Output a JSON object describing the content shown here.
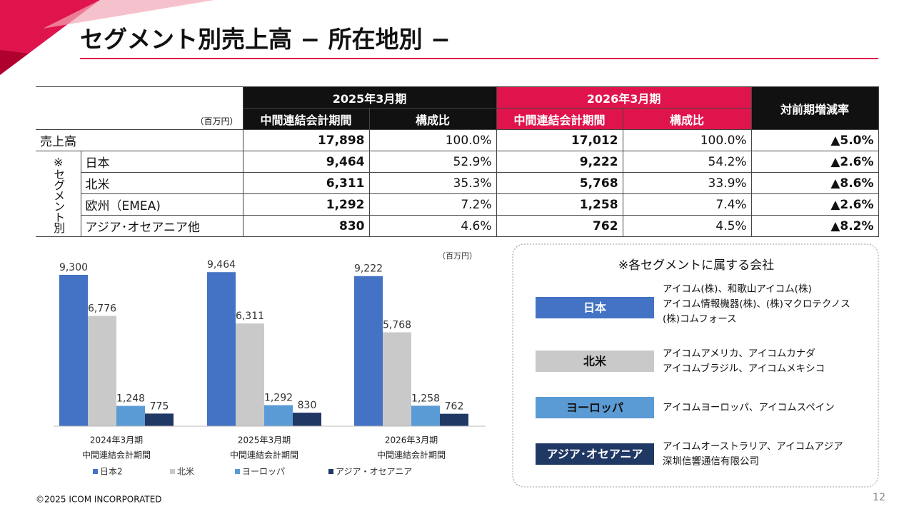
{
  "header": {
    "title": "セグメント別売上高 − 所在地別 −"
  },
  "table": {
    "unit": "（百万円）",
    "periods": [
      "2025年3月期",
      "2026年3月期"
    ],
    "change_header": "対前期増減率",
    "subheaders": [
      "中間連結会計期間",
      "構成比",
      "中間連結会計期間",
      "構成比"
    ],
    "total": {
      "label": "売上高",
      "cells": [
        "17,898",
        "100.0%",
        "17,012",
        "100.0%",
        "▲5.0%"
      ]
    },
    "segment_group": "※セグメント別",
    "rows": [
      {
        "label": "日本",
        "cells": [
          "9,464",
          "52.9%",
          "9,222",
          "54.2%",
          "▲2.6%"
        ]
      },
      {
        "label": "北米",
        "cells": [
          "6,311",
          "35.3%",
          "5,768",
          "33.9%",
          "▲8.6%"
        ]
      },
      {
        "label": "欧州（EMEA)",
        "cells": [
          "1,292",
          "7.2%",
          "1,258",
          "7.4%",
          "▲2.6%"
        ]
      },
      {
        "label": "アジア･オセアニア他",
        "cells": [
          "830",
          "4.6%",
          "762",
          "4.5%",
          "▲8.2%"
        ]
      }
    ]
  },
  "chart_data": {
    "type": "bar",
    "unit": "（百万円）",
    "categories": [
      [
        "2024年3月期",
        "中間連結会計期間"
      ],
      [
        "2025年3月期",
        "中間連結会計期間"
      ],
      [
        "2026年3月期",
        "中間連結会計期間"
      ]
    ],
    "ylim": [
      0,
      10000
    ],
    "series": [
      {
        "name": "日本2",
        "color": "#4472c4",
        "values": [
          9300,
          9464,
          9222
        ],
        "value_labels": [
          "9,300",
          "9,464",
          "9,222"
        ]
      },
      {
        "name": "北米",
        "color": "#c9c9c9",
        "values": [
          6776,
          6311,
          5768
        ],
        "value_labels": [
          "6,776",
          "6,311",
          "5,768"
        ]
      },
      {
        "name": "ヨーロッパ",
        "color": "#5b9bd5",
        "values": [
          1248,
          1292,
          1258
        ],
        "value_labels": [
          "1,248",
          "1,292",
          "1,258"
        ]
      },
      {
        "name": "アジア・オセアニア",
        "color": "#203864",
        "values": [
          775,
          830,
          762
        ],
        "value_labels": [
          "775",
          "830",
          "762"
        ]
      }
    ]
  },
  "companies": {
    "title": "※各セグメントに属する会社",
    "groups": [
      {
        "label": "日本",
        "lines": [
          "アイコム(株)、和歌山アイコム(株)",
          "アイコム情報機器(株)、(株)マクロテクノス",
          "(株)コムフォース"
        ]
      },
      {
        "label": "北米",
        "lines": [
          "アイコムアメリカ、アイコムカナダ",
          "アイコムブラジル、アイコムメキシコ"
        ]
      },
      {
        "label": "ヨーロッパ",
        "lines": [
          "アイコムヨーロッパ、アイコムスペイン"
        ]
      },
      {
        "label": "アジア･オセアニア",
        "lines": [
          "アイコムオーストラリア、アイコムアジア",
          "深圳信響通信有限公司"
        ]
      }
    ]
  },
  "footer": {
    "copyright": "©2025 ICOM INCORPORATED",
    "page": "12"
  }
}
